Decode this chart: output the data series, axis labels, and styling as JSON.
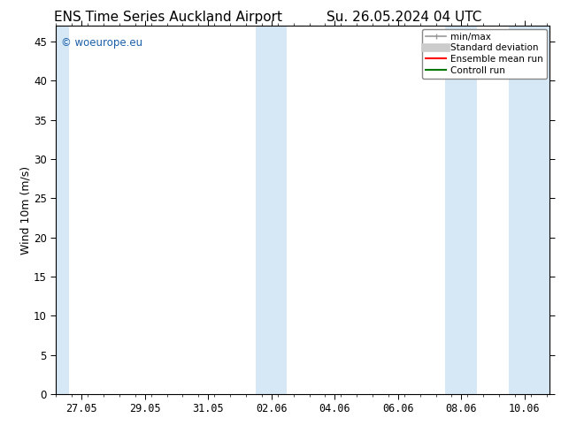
{
  "title_left": "ENS Time Series Auckland Airport",
  "title_right": "Su. 26.05.2024 04 UTC",
  "ylabel": "Wind 10m (m/s)",
  "ylim": [
    0,
    47
  ],
  "yticks": [
    0,
    5,
    10,
    15,
    20,
    25,
    30,
    35,
    40,
    45
  ],
  "xtick_labels": [
    "27.05",
    "29.05",
    "31.05",
    "02.06",
    "04.06",
    "06.06",
    "08.06",
    "10.06"
  ],
  "shaded_color": "#d6e8f5",
  "background_color": "#ffffff",
  "plot_bg_color": "#eef4fb",
  "watermark_text": "© woeurope.eu",
  "watermark_color": "#1a5fa8",
  "legend_items": [
    {
      "label": "min/max",
      "color": "#999999",
      "lw": 1.2
    },
    {
      "label": "Standard deviation",
      "color": "#cccccc",
      "lw": 6
    },
    {
      "label": "Ensemble mean run",
      "color": "#ff0000",
      "lw": 1.5
    },
    {
      "label": "Controll run",
      "color": "#007700",
      "lw": 1.5
    }
  ],
  "title_fontsize": 11,
  "axis_fontsize": 9,
  "tick_fontsize": 8.5,
  "xlim": [
    0,
    15
  ],
  "x_tick_positions": [
    0.875,
    2.625,
    4.375,
    6.125,
    7.875,
    9.625,
    11.375,
    13.125
  ],
  "shaded_bands_x": [
    [
      0.0,
      0.5
    ],
    [
      5.5,
      6.75
    ],
    [
      10.75,
      11.75
    ],
    [
      12.75,
      15.0
    ]
  ]
}
